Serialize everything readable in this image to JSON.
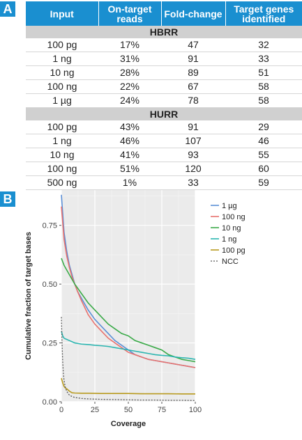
{
  "panel_a_label": "A",
  "panel_b_label": "B",
  "table": {
    "headers": [
      "Input",
      "On-target reads",
      "Fold-change",
      "Target genes identified"
    ],
    "groups": [
      {
        "name": "HBRR",
        "rows": [
          [
            "100 pg",
            "17%",
            "47",
            "32"
          ],
          [
            "1 ng",
            "31%",
            "91",
            "33"
          ],
          [
            "10 ng",
            "28%",
            "89",
            "51"
          ],
          [
            "100 ng",
            "22%",
            "67",
            "58"
          ],
          [
            "1 µg",
            "24%",
            "78",
            "58"
          ]
        ]
      },
      {
        "name": "HURR",
        "rows": [
          [
            "100 pg",
            "43%",
            "91",
            "29"
          ],
          [
            "1 ng",
            "46%",
            "107",
            "46"
          ],
          [
            "10 ng",
            "41%",
            "93",
            "55"
          ],
          [
            "100 ng",
            "51%",
            "120",
            "60"
          ],
          [
            "500 ng",
            "1%",
            "33",
            "59"
          ]
        ]
      }
    ]
  },
  "colors": {
    "header_blue": "#1a8fd0",
    "group_gray": "#d0d0d0",
    "plot_bg": "#ebebeb"
  },
  "chart_data": {
    "type": "line",
    "xlabel": "Coverage",
    "ylabel": "Cumulative fraction of target bases",
    "xlim": [
      0,
      100
    ],
    "ylim": [
      0,
      0.9
    ],
    "xticks": [
      0,
      25,
      50,
      75,
      100
    ],
    "yticks": [
      0.0,
      0.25,
      0.5,
      0.75
    ],
    "ytick_labels": [
      "0.00",
      "0.25",
      "0.50",
      "0.75"
    ],
    "grid": true,
    "legend_position": "right",
    "series": [
      {
        "name": "1 µg",
        "color": "#5b8fd6",
        "dashed": false,
        "points": [
          [
            0,
            0.88
          ],
          [
            1,
            0.8
          ],
          [
            2,
            0.72
          ],
          [
            4,
            0.64
          ],
          [
            6,
            0.58
          ],
          [
            8,
            0.54
          ],
          [
            10,
            0.5
          ],
          [
            12,
            0.47
          ],
          [
            15,
            0.44
          ],
          [
            20,
            0.39
          ],
          [
            25,
            0.35
          ],
          [
            30,
            0.32
          ],
          [
            35,
            0.29
          ],
          [
            40,
            0.26
          ],
          [
            45,
            0.24
          ],
          [
            50,
            0.22
          ],
          [
            55,
            0.2
          ],
          [
            60,
            0.19
          ],
          [
            65,
            0.18
          ],
          [
            70,
            0.175
          ],
          [
            75,
            0.17
          ],
          [
            80,
            0.165
          ],
          [
            85,
            0.16
          ],
          [
            90,
            0.155
          ],
          [
            95,
            0.15
          ],
          [
            100,
            0.145
          ]
        ]
      },
      {
        "name": "100 ng",
        "color": "#e8726e",
        "dashed": false,
        "points": [
          [
            0,
            0.83
          ],
          [
            1,
            0.76
          ],
          [
            2,
            0.69
          ],
          [
            4,
            0.62
          ],
          [
            6,
            0.57
          ],
          [
            8,
            0.53
          ],
          [
            10,
            0.5
          ],
          [
            12,
            0.47
          ],
          [
            15,
            0.43
          ],
          [
            20,
            0.37
          ],
          [
            25,
            0.33
          ],
          [
            30,
            0.3
          ],
          [
            35,
            0.27
          ],
          [
            40,
            0.25
          ],
          [
            45,
            0.23
          ],
          [
            50,
            0.21
          ],
          [
            55,
            0.2
          ],
          [
            60,
            0.19
          ],
          [
            65,
            0.18
          ],
          [
            70,
            0.175
          ],
          [
            75,
            0.17
          ],
          [
            80,
            0.165
          ],
          [
            85,
            0.16
          ],
          [
            90,
            0.155
          ],
          [
            95,
            0.15
          ],
          [
            100,
            0.145
          ]
        ]
      },
      {
        "name": "10 ng",
        "color": "#3aaa48",
        "dashed": false,
        "points": [
          [
            0,
            0.61
          ],
          [
            2,
            0.58
          ],
          [
            4,
            0.56
          ],
          [
            6,
            0.54
          ],
          [
            8,
            0.52
          ],
          [
            10,
            0.5
          ],
          [
            15,
            0.46
          ],
          [
            20,
            0.42
          ],
          [
            25,
            0.39
          ],
          [
            30,
            0.36
          ],
          [
            35,
            0.33
          ],
          [
            40,
            0.31
          ],
          [
            45,
            0.29
          ],
          [
            50,
            0.28
          ],
          [
            55,
            0.26
          ],
          [
            60,
            0.25
          ],
          [
            65,
            0.24
          ],
          [
            70,
            0.23
          ],
          [
            75,
            0.22
          ],
          [
            80,
            0.2
          ],
          [
            85,
            0.19
          ],
          [
            90,
            0.18
          ],
          [
            95,
            0.175
          ],
          [
            100,
            0.17
          ]
        ]
      },
      {
        "name": "1 ng",
        "color": "#2ab5b0",
        "dashed": false,
        "points": [
          [
            0,
            0.3
          ],
          [
            1,
            0.28
          ],
          [
            2,
            0.27
          ],
          [
            4,
            0.265
          ],
          [
            6,
            0.26
          ],
          [
            8,
            0.255
          ],
          [
            10,
            0.25
          ],
          [
            15,
            0.245
          ],
          [
            20,
            0.243
          ],
          [
            25,
            0.24
          ],
          [
            30,
            0.238
          ],
          [
            35,
            0.235
          ],
          [
            40,
            0.23
          ],
          [
            45,
            0.225
          ],
          [
            50,
            0.22
          ],
          [
            55,
            0.215
          ],
          [
            60,
            0.21
          ],
          [
            65,
            0.205
          ],
          [
            70,
            0.2
          ],
          [
            75,
            0.197
          ],
          [
            80,
            0.195
          ],
          [
            85,
            0.19
          ],
          [
            90,
            0.187
          ],
          [
            95,
            0.185
          ],
          [
            100,
            0.18
          ]
        ]
      },
      {
        "name": "100 pg",
        "color": "#b89a1e",
        "dashed": false,
        "points": [
          [
            0,
            0.1
          ],
          [
            1,
            0.08
          ],
          [
            2,
            0.065
          ],
          [
            3,
            0.058
          ],
          [
            4,
            0.055
          ],
          [
            5,
            0.05
          ],
          [
            6,
            0.045
          ],
          [
            8,
            0.038
          ],
          [
            10,
            0.037
          ],
          [
            15,
            0.036
          ],
          [
            20,
            0.036
          ],
          [
            30,
            0.035
          ],
          [
            40,
            0.035
          ],
          [
            50,
            0.035
          ],
          [
            60,
            0.034
          ],
          [
            70,
            0.034
          ],
          [
            80,
            0.034
          ],
          [
            90,
            0.033
          ],
          [
            100,
            0.033
          ]
        ]
      },
      {
        "name": "NCC",
        "color": "#555555",
        "dashed": true,
        "points": [
          [
            0,
            0.36
          ],
          [
            0.5,
            0.25
          ],
          [
            1,
            0.17
          ],
          [
            1.5,
            0.12
          ],
          [
            2,
            0.09
          ],
          [
            3,
            0.06
          ],
          [
            4,
            0.045
          ],
          [
            5,
            0.035
          ],
          [
            6,
            0.028
          ],
          [
            8,
            0.022
          ],
          [
            10,
            0.018
          ],
          [
            15,
            0.014
          ],
          [
            20,
            0.012
          ],
          [
            30,
            0.01
          ],
          [
            40,
            0.009
          ],
          [
            50,
            0.008
          ],
          [
            60,
            0.007
          ],
          [
            70,
            0.007
          ],
          [
            80,
            0.006
          ],
          [
            90,
            0.006
          ],
          [
            100,
            0.005
          ]
        ]
      }
    ]
  }
}
